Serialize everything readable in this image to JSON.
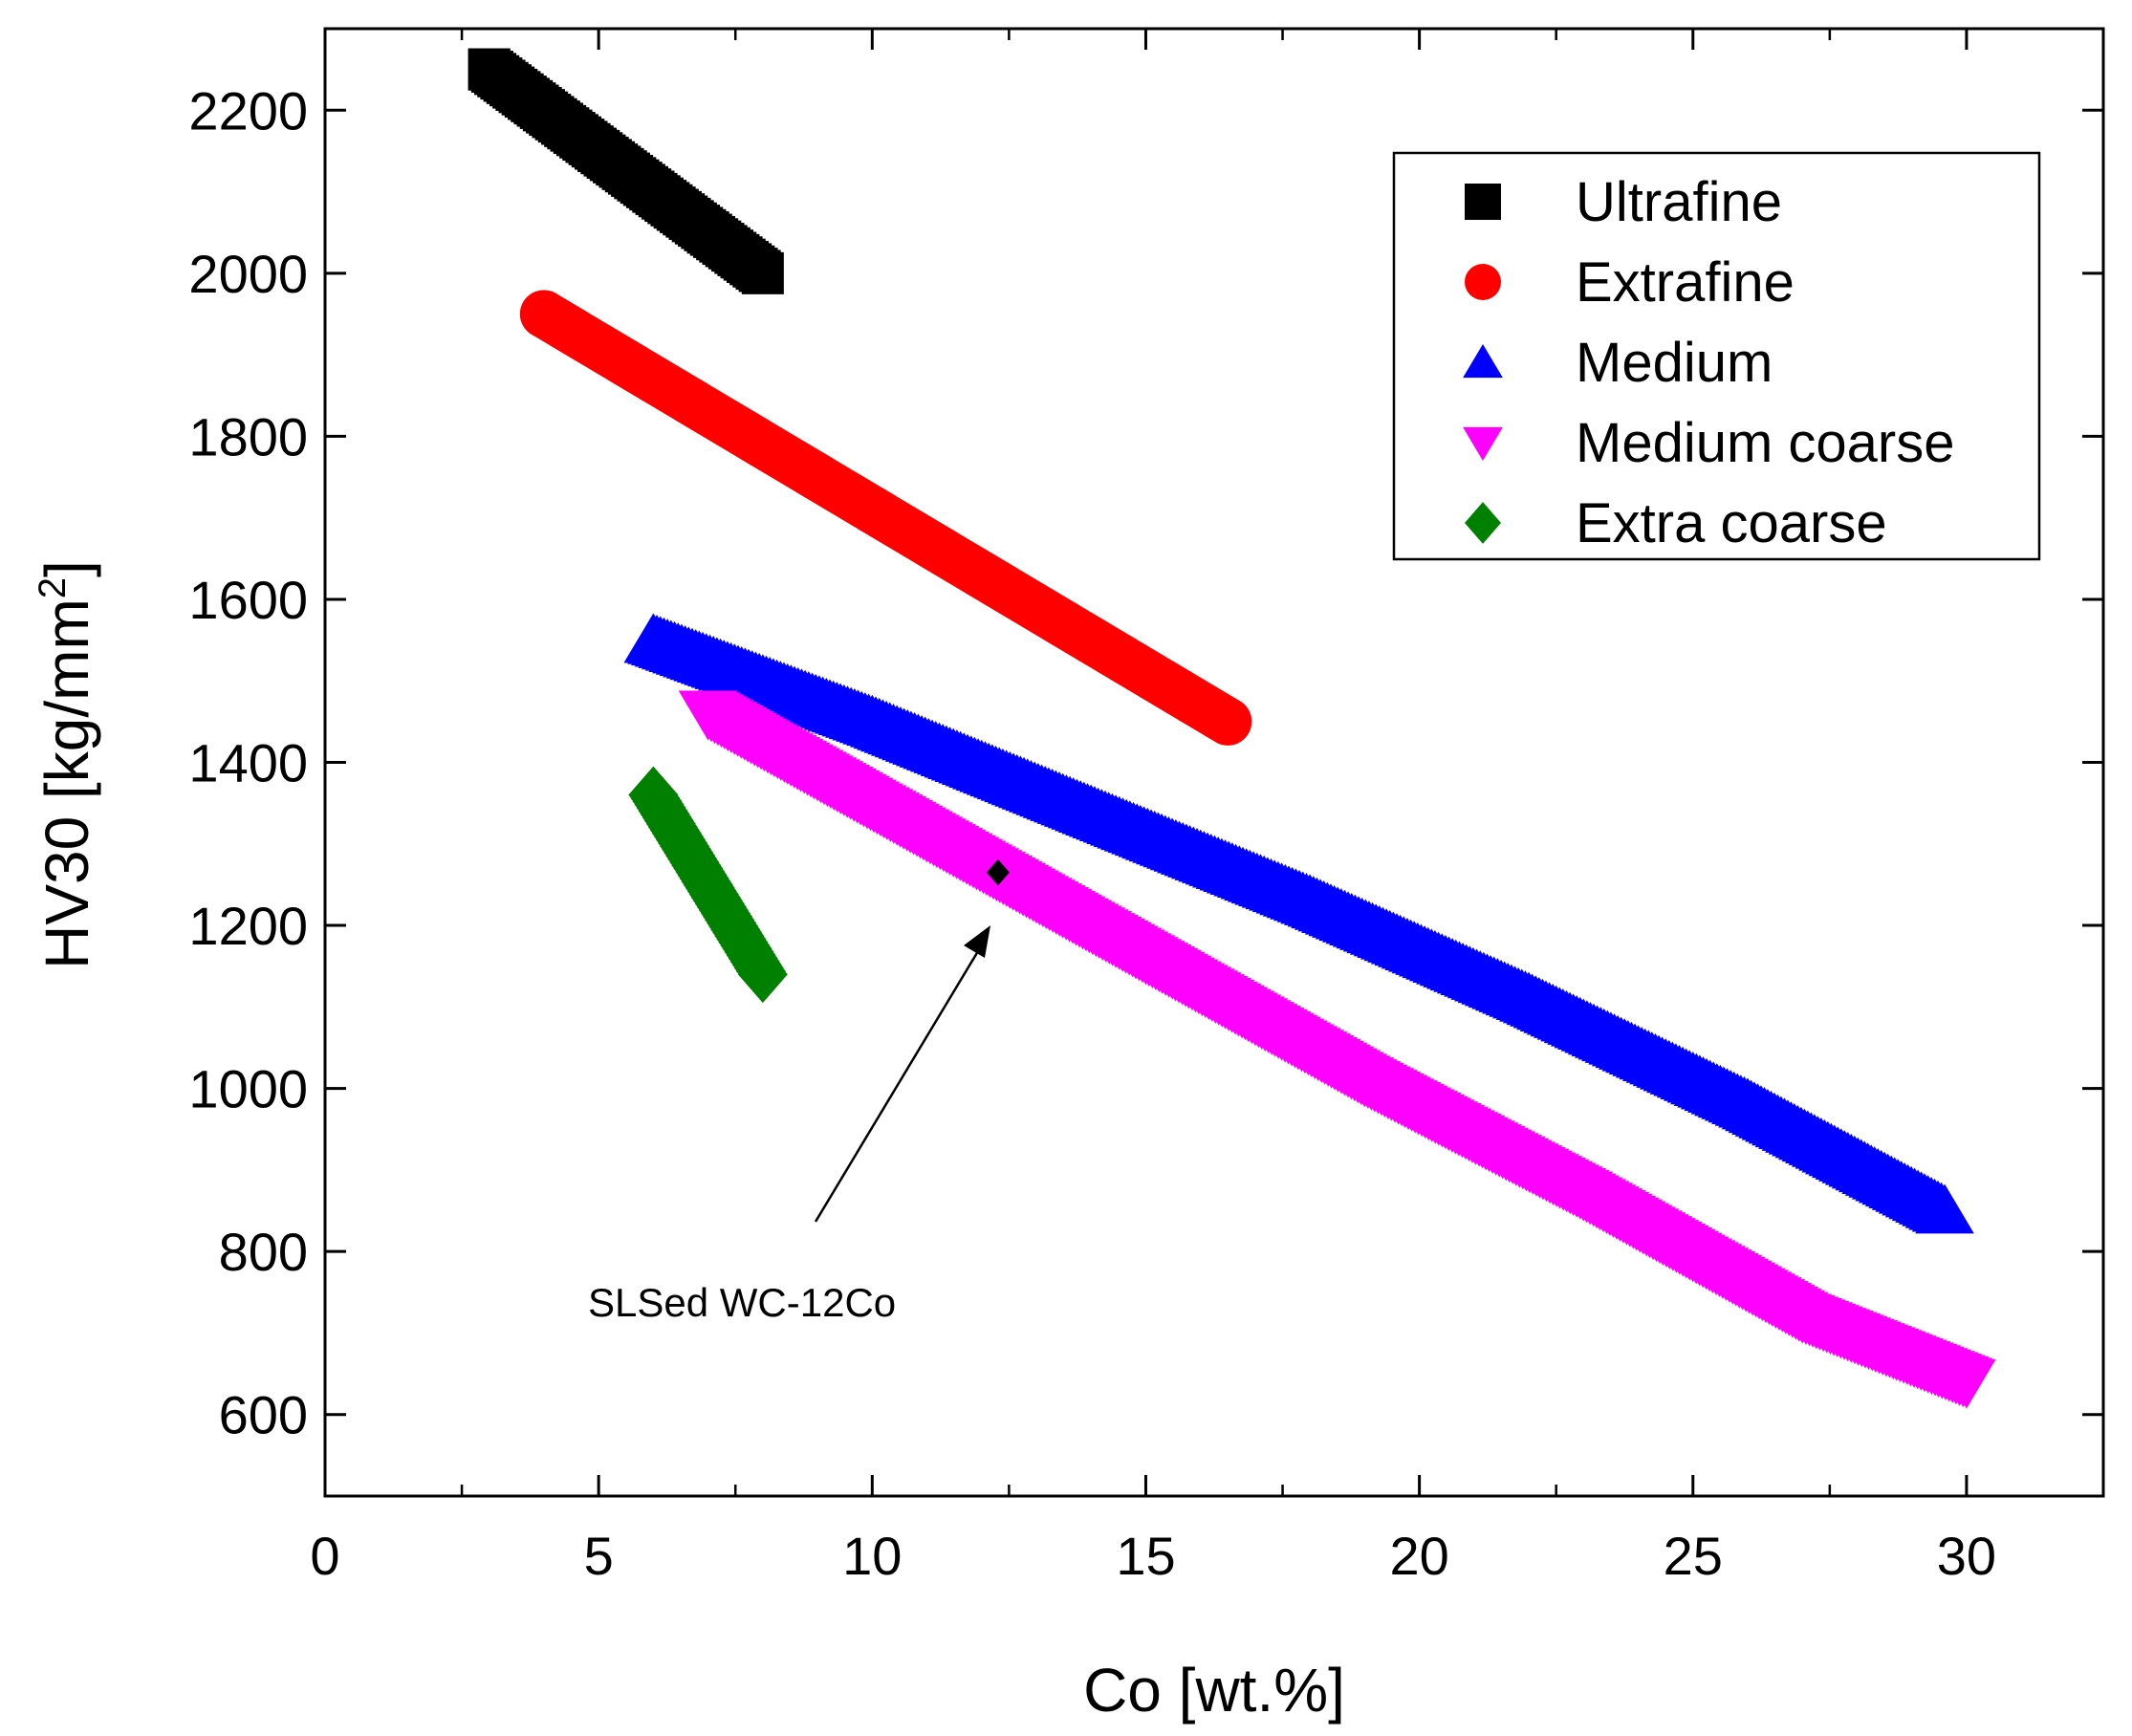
{
  "chart_data": {
    "type": "scatter",
    "title": "",
    "xlabel": "Co [wt.%]",
    "ylabel_main": "HV30 [kg/mm",
    "ylabel_sup": "2",
    "ylabel_end": "]",
    "xlim": [
      0,
      32.5
    ],
    "ylim": [
      500,
      2300
    ],
    "xticks": [
      0,
      5,
      10,
      15,
      20,
      25,
      30
    ],
    "xtick_labels": [
      "0",
      "5",
      "10",
      "15",
      "20",
      "25",
      "30"
    ],
    "yticks": [
      600,
      800,
      1000,
      1200,
      1400,
      1600,
      1800,
      2000,
      2200
    ],
    "ytick_labels": [
      "600",
      "800",
      "1000",
      "1200",
      "1400",
      "1600",
      "1800",
      "2000",
      "2200"
    ],
    "grid": false,
    "legend_position": "top-right",
    "series": [
      {
        "name": "Ultrafine",
        "marker": "square",
        "color": "#000000",
        "x": [
          3,
          4,
          5,
          6,
          7,
          8
        ],
        "y": [
          2250,
          2200,
          2150,
          2100,
          2050,
          2000
        ]
      },
      {
        "name": "Extrafine",
        "marker": "circle",
        "color": "#ff0000",
        "x": [
          4,
          6,
          8,
          10,
          12,
          14,
          16.5
        ],
        "y": [
          1950,
          1870,
          1790,
          1710,
          1630,
          1550,
          1450
        ]
      },
      {
        "name": "Medium",
        "marker": "triangle-up",
        "color": "#0000ff",
        "x": [
          6,
          10,
          14,
          18,
          22,
          26,
          29.6
        ],
        "y": [
          1550,
          1450,
          1340,
          1230,
          1110,
          980,
          850
        ]
      },
      {
        "name": "Medium coarse",
        "marker": "triangle-down",
        "color": "#ff00ff",
        "x": [
          7,
          11,
          15,
          19,
          23,
          27,
          30
        ],
        "y": [
          1460,
          1310,
          1160,
          1010,
          870,
          720,
          640
        ]
      },
      {
        "name": "Extra coarse",
        "marker": "diamond",
        "color": "#008000",
        "x": [
          6,
          7,
          8
        ],
        "y": [
          1360,
          1250,
          1140
        ]
      }
    ],
    "annotation": {
      "text": "SLSed WC-12Co",
      "x": 12.3,
      "y": 1265,
      "color": "#000000"
    }
  }
}
